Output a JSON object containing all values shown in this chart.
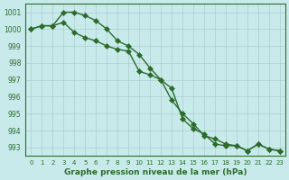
{
  "line1": [
    1000.0,
    1000.2,
    1000.2,
    1001.0,
    1001.0,
    1000.8,
    1000.5,
    1000.0,
    999.3,
    999.0,
    998.5,
    997.7,
    997.0,
    996.5,
    994.7,
    994.1,
    993.8,
    993.2,
    993.1,
    993.1,
    992.8,
    993.2,
    992.9,
    992.8
  ],
  "line2": [
    1000.0,
    1000.2,
    1000.2,
    1000.4,
    999.8,
    999.5,
    999.3,
    999.0,
    998.8,
    998.7,
    997.5,
    997.3,
    997.0,
    995.8,
    995.0,
    994.4,
    993.7,
    993.5,
    993.2,
    993.1,
    992.8,
    993.2,
    992.9,
    992.8
  ],
  "x": [
    0,
    1,
    2,
    3,
    4,
    5,
    6,
    7,
    8,
    9,
    10,
    11,
    12,
    13,
    14,
    15,
    16,
    17,
    18,
    19,
    20,
    21,
    22,
    23
  ],
  "line_color": "#2d6b2d",
  "bg_color": "#c8eaea",
  "grid_color_major": "#aecece",
  "xlabel": "Graphe pression niveau de la mer (hPa)",
  "ylim": [
    992.5,
    1001.5
  ],
  "yticks": [
    993,
    994,
    995,
    996,
    997,
    998,
    999,
    1000,
    1001
  ],
  "xticks": [
    0,
    1,
    2,
    3,
    4,
    5,
    6,
    7,
    8,
    9,
    10,
    11,
    12,
    13,
    14,
    15,
    16,
    17,
    18,
    19,
    20,
    21,
    22,
    23
  ],
  "marker_size": 3,
  "line_width": 1.0
}
